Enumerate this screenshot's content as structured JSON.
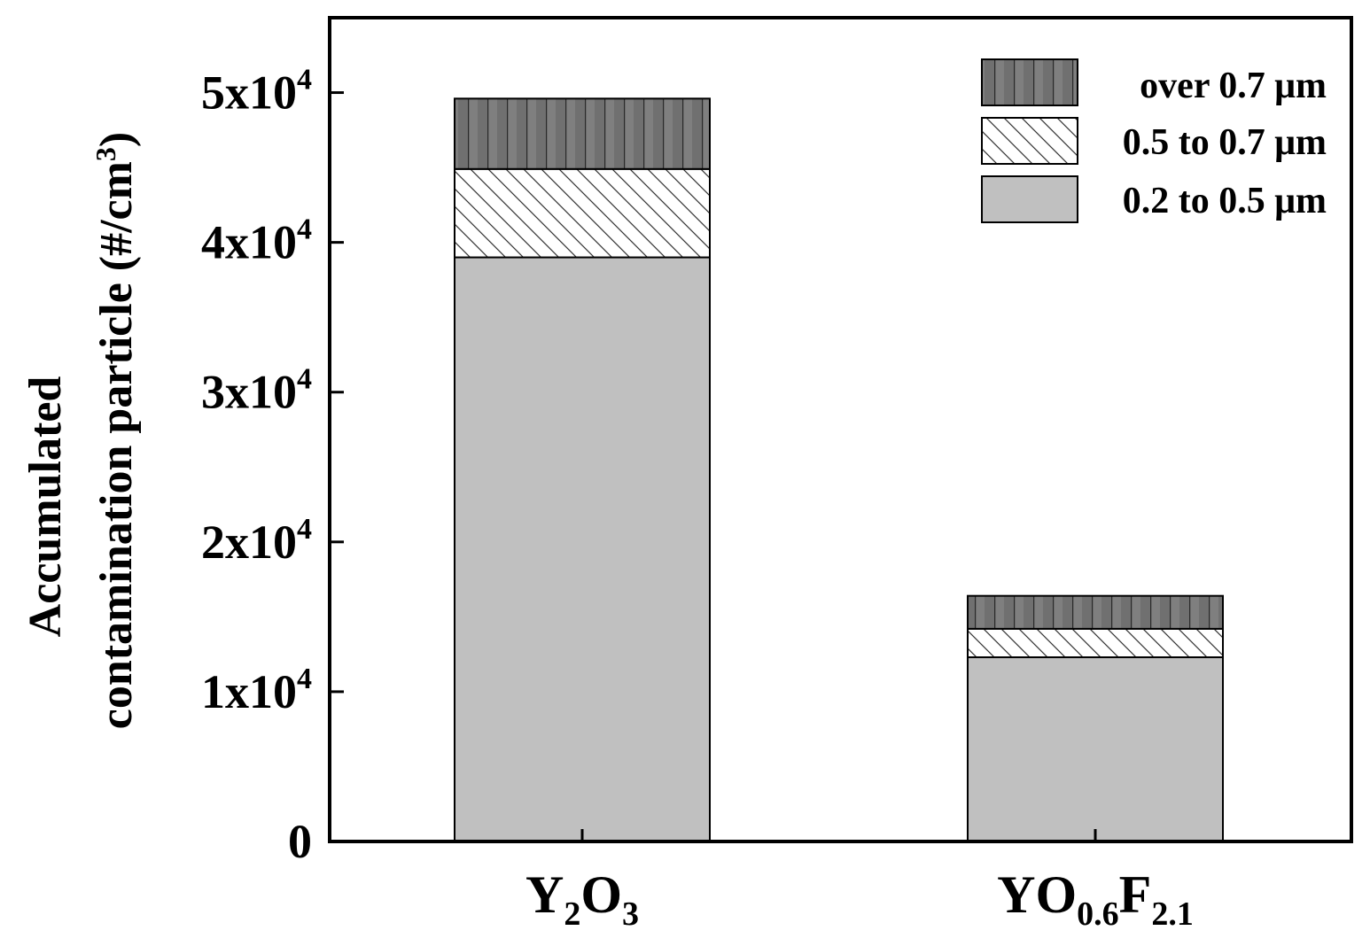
{
  "chart_data": {
    "type": "bar",
    "stacked": true,
    "categories": [
      {
        "base": "Y",
        "parts": [
          [
            "sub",
            "2"
          ],
          [
            "base",
            "O"
          ],
          [
            "sub",
            "3"
          ]
        ]
      },
      {
        "base": "YO",
        "parts": [
          [
            "sub",
            "0.6"
          ],
          [
            "base",
            "F"
          ],
          [
            "sub",
            "2.1"
          ]
        ]
      }
    ],
    "series": [
      {
        "name": "0.2 to 0.5 μm",
        "values": [
          39000,
          12300
        ],
        "color": "#c0c0c0",
        "pattern": "solid"
      },
      {
        "name": "0.5 to 0.7 μm",
        "values": [
          5900,
          1900
        ],
        "color": "#ffffff",
        "pattern": "diagonal"
      },
      {
        "name": "over 0.7 μm",
        "values": [
          4700,
          2200
        ],
        "color": "#707070",
        "pattern": "vertical"
      }
    ],
    "legend_order": [
      2,
      1,
      0
    ],
    "legend_position": "top-right",
    "ylabel_line1": "Accumulated",
    "ylabel_line2": "contamination particle (#/cm",
    "ylabel_sup": "3",
    "ylabel_end": ")",
    "ylim": [
      0,
      55000
    ],
    "yticks": [
      {
        "value": 0,
        "label": "0",
        "sup": ""
      },
      {
        "value": 10000,
        "label": "1x10",
        "sup": "4"
      },
      {
        "value": 20000,
        "label": "2x10",
        "sup": "4"
      },
      {
        "value": 30000,
        "label": "3x10",
        "sup": "4"
      },
      {
        "value": 40000,
        "label": "4x10",
        "sup": "4"
      },
      {
        "value": 50000,
        "label": "5x10",
        "sup": "4"
      }
    ],
    "grid": false
  }
}
